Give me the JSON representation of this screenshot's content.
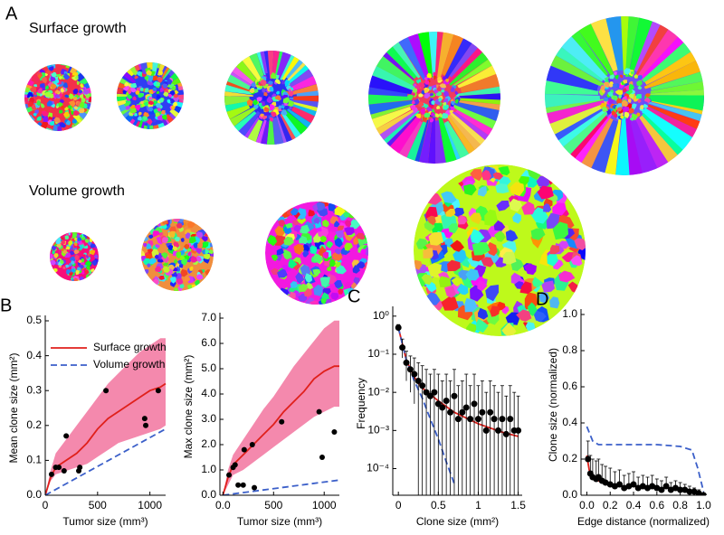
{
  "panel_a": {
    "label": "A",
    "rows": [
      {
        "title": "Surface growth"
      },
      {
        "title": "Volume growth"
      }
    ]
  },
  "chart_data": [
    {
      "type": "line",
      "panel": "B",
      "y_label": "Mean clone size (mm²)",
      "x_label": "Tumor size (mm³)",
      "xlim": [
        0,
        1150
      ],
      "xticks": [
        0,
        500,
        1000
      ],
      "ylim": [
        0,
        0.5
      ],
      "yticks": [
        {
          "value": 0,
          "label": "0.0"
        },
        {
          "value": 0.1,
          "label": "0.1"
        },
        {
          "value": 0.2,
          "label": "0.2"
        },
        {
          "value": 0.3,
          "label": "0.3"
        },
        {
          "value": 0.4,
          "label": "0.4"
        },
        {
          "value": 0.5,
          "label": "0.5"
        }
      ],
      "legend": "top",
      "band": {
        "color": "#f06292",
        "x": [
          0,
          50,
          100,
          200,
          300,
          400,
          500,
          600,
          700,
          800,
          900,
          1000,
          1100,
          1150
        ],
        "lower": [
          0,
          0.04,
          0.06,
          0.07,
          0.08,
          0.09,
          0.11,
          0.13,
          0.15,
          0.16,
          0.17,
          0.18,
          0.19,
          0.2
        ],
        "upper": [
          0,
          0.07,
          0.12,
          0.16,
          0.2,
          0.24,
          0.28,
          0.32,
          0.35,
          0.38,
          0.41,
          0.43,
          0.45,
          0.45
        ]
      },
      "series": [
        {
          "name": "Surface growth",
          "color": "#e0201b",
          "style": "solid",
          "x": [
            0,
            50,
            100,
            200,
            300,
            400,
            500,
            600,
            700,
            800,
            900,
            1000,
            1100,
            1150
          ],
          "values": [
            0,
            0.05,
            0.08,
            0.1,
            0.12,
            0.15,
            0.19,
            0.22,
            0.24,
            0.26,
            0.28,
            0.3,
            0.31,
            0.32
          ]
        },
        {
          "name": "Volume growth",
          "color": "#3b5fc9",
          "style": "dashed",
          "x": [
            0,
            1150
          ],
          "values": [
            0,
            0.19
          ]
        }
      ],
      "points": {
        "color": "#000000",
        "x": [
          60,
          100,
          130,
          180,
          200,
          320,
          330,
          580,
          950,
          960,
          1080
        ],
        "values": [
          0.06,
          0.08,
          0.08,
          0.07,
          0.17,
          0.07,
          0.08,
          0.3,
          0.22,
          0.2,
          0.3
        ]
      }
    },
    {
      "type": "line",
      "y_label": "Max clone size (mm²)",
      "x_label": "Tumor size (mm³)",
      "xlim": [
        -30,
        1150
      ],
      "xticks": [
        {
          "value": 0,
          "label": "0.0"
        },
        500,
        1000
      ],
      "ylim": [
        0,
        7
      ],
      "yticks": [
        {
          "value": 0,
          "label": "0.0"
        },
        {
          "value": 1,
          "label": "1.0"
        },
        {
          "value": 2,
          "label": "2.0"
        },
        {
          "value": 3,
          "label": "3.0"
        },
        {
          "value": 4,
          "label": "4.0"
        },
        {
          "value": 5,
          "label": "5.0"
        },
        {
          "value": 6,
          "label": "6.0"
        },
        {
          "value": 7,
          "label": "7.0"
        }
      ],
      "band": {
        "color": "#f06292",
        "x": [
          0,
          50,
          100,
          200,
          300,
          400,
          500,
          600,
          700,
          800,
          900,
          1000,
          1100,
          1150
        ],
        "lower": [
          0,
          0.4,
          0.8,
          1,
          1.3,
          1.6,
          1.9,
          2.2,
          2.5,
          2.8,
          3.1,
          3.3,
          3.5,
          3.5
        ],
        "upper": [
          0,
          1,
          1.6,
          2.2,
          2.8,
          3.4,
          3.9,
          4.5,
          5.1,
          5.6,
          6.1,
          6.6,
          6.9,
          6.9
        ]
      },
      "series": [
        {
          "color": "#e0201b",
          "style": "solid",
          "x": [
            0,
            50,
            100,
            200,
            300,
            400,
            500,
            600,
            700,
            800,
            900,
            1000,
            1100,
            1150
          ],
          "values": [
            0,
            0.7,
            1.2,
            1.6,
            2,
            2.4,
            2.8,
            3.3,
            3.7,
            4.1,
            4.6,
            4.9,
            5.1,
            5.1
          ]
        },
        {
          "color": "#3b5fc9",
          "style": "dashed",
          "x": [
            0,
            1150
          ],
          "values": [
            0,
            0.6
          ]
        }
      ],
      "points": {
        "color": "#000000",
        "x": [
          60,
          100,
          120,
          150,
          200,
          210,
          290,
          310,
          580,
          950,
          980,
          1100
        ],
        "values": [
          0.8,
          1.1,
          1.2,
          0.4,
          0.4,
          1.8,
          2,
          0.3,
          2.9,
          3.3,
          1.5,
          2.5
        ]
      }
    },
    {
      "type": "line",
      "panel": "C",
      "y_label": "Frequency",
      "x_label": "Clone size (mm²)",
      "log_y": true,
      "xlim": [
        -0.07,
        1.55
      ],
      "xticks": [
        0,
        0.5,
        1,
        1.5
      ],
      "ylim": [
        2e-05,
        1.3
      ],
      "yticks": [
        {
          "value": 1,
          "label": "10⁰"
        },
        {
          "value": 0.1,
          "label": "10⁻¹"
        },
        {
          "value": 0.01,
          "label": "10⁻²"
        },
        {
          "value": 0.001,
          "label": "10⁻³"
        },
        {
          "value": 0.0001,
          "label": "10⁻⁴"
        }
      ],
      "series": [
        {
          "color": "#e0201b",
          "style": "solid",
          "x": [
            0,
            0.1,
            0.2,
            0.3,
            0.5,
            0.7,
            1.0,
            1.3,
            1.5
          ],
          "values": [
            0.5,
            0.07,
            0.025,
            0.013,
            0.006,
            0.003,
            0.0015,
            0.0009,
            0.0007
          ]
        },
        {
          "color": "#3b5fc9",
          "style": "dashed",
          "x": [
            0,
            0.1,
            0.2,
            0.3,
            0.4,
            0.5,
            0.6,
            0.7
          ],
          "values": [
            0.5,
            0.07,
            0.02,
            0.007,
            0.002,
            0.0006,
            0.00015,
            4e-05
          ]
        }
      ],
      "points": {
        "color": "#000000",
        "x": [
          0,
          0.05,
          0.1,
          0.15,
          0.2,
          0.25,
          0.3,
          0.35,
          0.4,
          0.45,
          0.5,
          0.55,
          0.6,
          0.65,
          0.7,
          0.75,
          0.8,
          0.85,
          0.9,
          0.95,
          1.0,
          1.05,
          1.1,
          1.15,
          1.2,
          1.25,
          1.3,
          1.35,
          1.4,
          1.45,
          1.5
        ],
        "values": [
          0.5,
          0.15,
          0.06,
          0.04,
          0.03,
          0.02,
          0.015,
          0.01,
          0.008,
          0.01,
          0.005,
          0.004,
          0.006,
          0.003,
          0.008,
          0.002,
          0.003,
          0.004,
          0.002,
          0.005,
          0.002,
          0.003,
          0.001,
          0.003,
          0.002,
          0.001,
          0.002,
          0.0008,
          0.002,
          0.001,
          0.001
        ],
        "upper": [
          0.6,
          0.25,
          0.12,
          0.09,
          0.08,
          0.06,
          0.05,
          0.04,
          0.03,
          0.04,
          0.03,
          0.02,
          0.03,
          0.02,
          0.04,
          0.015,
          0.02,
          0.03,
          0.015,
          0.03,
          0.015,
          0.02,
          0.01,
          0.02,
          0.015,
          0.01,
          0.015,
          0.008,
          0.015,
          0.01,
          0.008
        ],
        "lower": [
          0.4,
          0.08,
          0.02,
          0.01,
          0.005,
          2e-05,
          2e-05,
          2e-05,
          2e-05,
          2e-05,
          2e-05,
          2e-05,
          2e-05,
          2e-05,
          2e-05,
          2e-05,
          2e-05,
          2e-05,
          2e-05,
          2e-05,
          2e-05,
          2e-05,
          2e-05,
          2e-05,
          2e-05,
          2e-05,
          2e-05,
          2e-05,
          2e-05,
          2e-05,
          2e-05
        ]
      }
    },
    {
      "type": "line",
      "panel": "D",
      "y_label": "Clone size (normalized)",
      "x_label": "Edge distance (normalized)",
      "xlim": [
        -0.05,
        1.02
      ],
      "xticks": [
        {
          "value": 0,
          "label": "0.0"
        },
        {
          "value": 0.2,
          "label": "0.2"
        },
        {
          "value": 0.4,
          "label": "0.4"
        },
        {
          "value": 0.6,
          "label": "0.6"
        },
        {
          "value": 0.8,
          "label": "0.8"
        },
        {
          "value": 1,
          "label": "1.0"
        }
      ],
      "ylim": [
        0,
        1
      ],
      "yticks": [
        {
          "value": 0,
          "label": "0.0"
        },
        {
          "value": 0.2,
          "label": "0.2"
        },
        {
          "value": 0.4,
          "label": "0.4"
        },
        {
          "value": 0.6,
          "label": "0.6"
        },
        {
          "value": 0.8,
          "label": "0.8"
        },
        {
          "value": 1,
          "label": "1.0"
        }
      ],
      "series": [
        {
          "color": "#e0201b",
          "style": "solid",
          "x": [
            0,
            0.02,
            0.05,
            0.1,
            0.2,
            0.3,
            0.4,
            0.5,
            0.6,
            0.7,
            0.8,
            0.9,
            1.0
          ],
          "values": [
            0.22,
            0.14,
            0.1,
            0.08,
            0.06,
            0.05,
            0.05,
            0.04,
            0.04,
            0.04,
            0.03,
            0.02,
            0
          ]
        },
        {
          "color": "#3b5fc9",
          "style": "dashed",
          "x": [
            0,
            0.05,
            0.1,
            0.2,
            0.4,
            0.6,
            0.8,
            0.9,
            0.95,
            1.0
          ],
          "values": [
            0.38,
            0.3,
            0.28,
            0.28,
            0.28,
            0.28,
            0.27,
            0.25,
            0.15,
            0.02
          ]
        }
      ],
      "points": {
        "color": "#000000",
        "x": [
          0.01,
          0.03,
          0.05,
          0.08,
          0.1,
          0.13,
          0.16,
          0.2,
          0.24,
          0.28,
          0.32,
          0.36,
          0.4,
          0.44,
          0.48,
          0.52,
          0.56,
          0.6,
          0.64,
          0.68,
          0.72,
          0.76,
          0.8,
          0.84,
          0.88,
          0.92,
          0.96,
          1.0
        ],
        "values": [
          0.2,
          0.12,
          0.1,
          0.09,
          0.1,
          0.08,
          0.07,
          0.06,
          0.05,
          0.06,
          0.04,
          0.05,
          0.06,
          0.04,
          0.05,
          0.04,
          0.05,
          0.04,
          0.03,
          0.05,
          0.03,
          0.04,
          0.03,
          0.03,
          0.02,
          0.02,
          0.01,
          0
        ],
        "upper": [
          0.3,
          0.22,
          0.2,
          0.19,
          0.2,
          0.17,
          0.16,
          0.15,
          0.13,
          0.14,
          0.11,
          0.12,
          0.13,
          0.1,
          0.11,
          0.1,
          0.11,
          0.09,
          0.08,
          0.1,
          0.07,
          0.08,
          0.07,
          0.06,
          0.05,
          0.04,
          0.03,
          0.01
        ]
      }
    }
  ]
}
